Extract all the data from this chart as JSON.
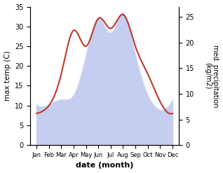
{
  "months": [
    "Jan",
    "Feb",
    "Mar",
    "Apr",
    "May",
    "Jun",
    "Jul",
    "Aug",
    "Sep",
    "Oct",
    "Nov",
    "Dec"
  ],
  "month_x": [
    1,
    2,
    3,
    4,
    5,
    6,
    7,
    8,
    9,
    10,
    11,
    12
  ],
  "temperature": [
    8,
    10,
    18,
    29,
    25,
    32,
    29.5,
    33,
    25,
    18,
    11,
    8
  ],
  "precipitation": [
    8,
    8,
    9,
    10,
    18,
    25,
    22,
    26,
    18,
    10,
    7,
    9
  ],
  "temp_color": "#c0392b",
  "precip_fill_color": "#c5cef0",
  "precip_edge_color": "#a0aadf",
  "ylabel_left": "max temp (C)",
  "ylabel_right": "med. precipitation\n(kg/m2)",
  "xlabel": "date (month)",
  "ylim_left": [
    0,
    35
  ],
  "ylim_right": [
    0,
    27
  ],
  "xlim": [
    0.5,
    12.5
  ],
  "yticks_left": [
    0,
    5,
    10,
    15,
    20,
    25,
    30,
    35
  ],
  "yticks_right": [
    0,
    5,
    10,
    15,
    20,
    25
  ],
  "bg_color": "#f5f5f5"
}
